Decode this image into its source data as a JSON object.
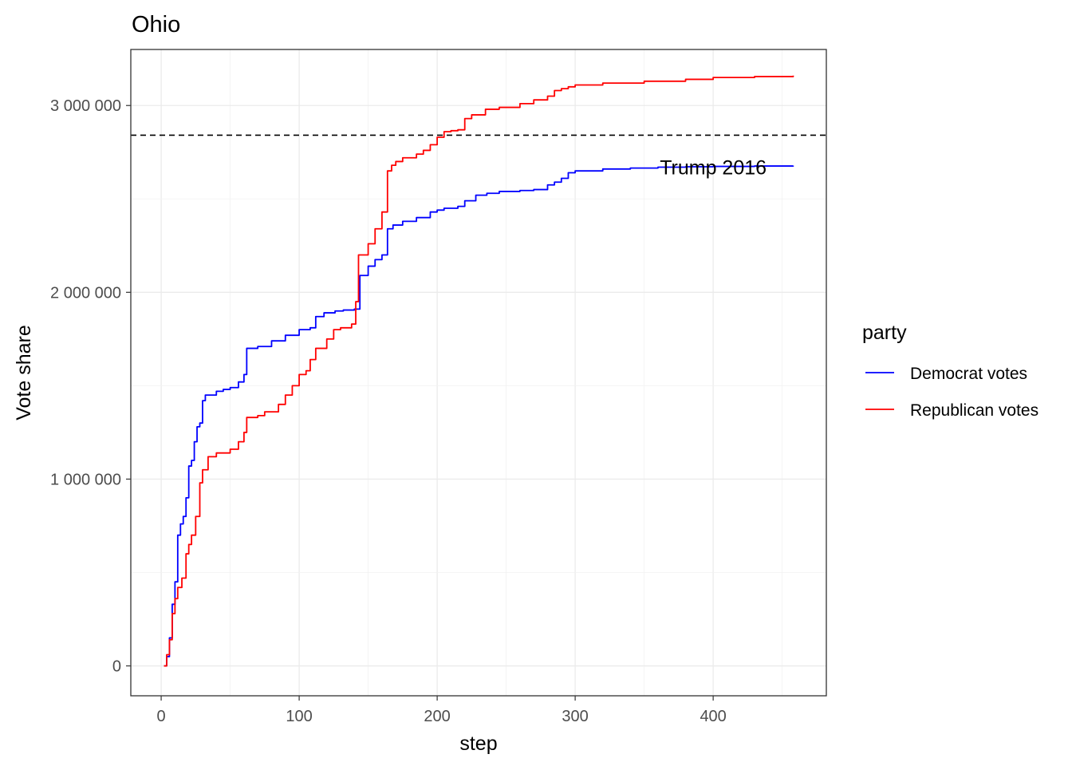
{
  "chart_data": {
    "type": "line",
    "title": "Ohio",
    "xlabel": "step",
    "ylabel": "Vote share",
    "xlim": [
      -22,
      482
    ],
    "ylim": [
      -160000,
      3300000
    ],
    "x_ticks": [
      0,
      100,
      200,
      300,
      400
    ],
    "x_tick_labels": [
      "0",
      "100",
      "200",
      "300",
      "400"
    ],
    "y_ticks": [
      0,
      1000000,
      2000000,
      3000000
    ],
    "y_tick_labels": [
      "0",
      "1 000 000",
      "2 000 000",
      "3 000 000"
    ],
    "grid": true,
    "legend": {
      "title": "party",
      "position": "right",
      "entries": [
        {
          "label": "Democrat votes",
          "color": "#0000ff"
        },
        {
          "label": "Republican votes",
          "color": "#ff0000"
        }
      ]
    },
    "reference_line": {
      "y": 2841005,
      "style": "dashed",
      "color": "#000000"
    },
    "annotation": {
      "text": "Trump 2016",
      "x": 400,
      "y": 2670000
    },
    "series": [
      {
        "name": "Democrat votes",
        "color": "#0000ff",
        "x": [
          2,
          4,
          6,
          8,
          10,
          12,
          14,
          16,
          18,
          20,
          22,
          24,
          26,
          28,
          30,
          32,
          35,
          40,
          45,
          50,
          56,
          60,
          62,
          70,
          80,
          90,
          100,
          108,
          112,
          118,
          126,
          132,
          140,
          144,
          150,
          155,
          160,
          164,
          168,
          175,
          185,
          195,
          200,
          205,
          215,
          220,
          228,
          236,
          245,
          260,
          270,
          280,
          285,
          290,
          295,
          300,
          320,
          340,
          360,
          380,
          400,
          430,
          458
        ],
        "values": [
          0,
          50000,
          150000,
          330000,
          450000,
          700000,
          760000,
          800000,
          900000,
          1070000,
          1100000,
          1200000,
          1280000,
          1300000,
          1420000,
          1450000,
          1450000,
          1470000,
          1480000,
          1490000,
          1520000,
          1560000,
          1700000,
          1710000,
          1740000,
          1770000,
          1800000,
          1810000,
          1870000,
          1890000,
          1900000,
          1905000,
          1910000,
          2090000,
          2140000,
          2175000,
          2200000,
          2340000,
          2360000,
          2380000,
          2400000,
          2430000,
          2440000,
          2450000,
          2460000,
          2490000,
          2520000,
          2530000,
          2540000,
          2545000,
          2550000,
          2575000,
          2590000,
          2610000,
          2640000,
          2650000,
          2660000,
          2665000,
          2670000,
          2672000,
          2674000,
          2676000,
          2678000
        ]
      },
      {
        "name": "Republican votes",
        "color": "#ff0000",
        "x": [
          2,
          4,
          6,
          8,
          10,
          12,
          15,
          18,
          20,
          22,
          25,
          28,
          30,
          34,
          40,
          50,
          56,
          60,
          62,
          70,
          75,
          85,
          90,
          95,
          100,
          105,
          108,
          112,
          120,
          125,
          130,
          138,
          141,
          143,
          150,
          155,
          160,
          164,
          167,
          170,
          175,
          185,
          190,
          195,
          200,
          205,
          210,
          215,
          220,
          225,
          235,
          245,
          260,
          270,
          280,
          285,
          290,
          295,
          300,
          320,
          350,
          380,
          400,
          430,
          458
        ],
        "values": [
          0,
          60000,
          140000,
          280000,
          360000,
          420000,
          470000,
          600000,
          650000,
          700000,
          800000,
          980000,
          1050000,
          1120000,
          1140000,
          1160000,
          1200000,
          1250000,
          1330000,
          1340000,
          1360000,
          1400000,
          1450000,
          1500000,
          1560000,
          1580000,
          1640000,
          1700000,
          1750000,
          1800000,
          1810000,
          1830000,
          1950000,
          2200000,
          2260000,
          2340000,
          2430000,
          2650000,
          2680000,
          2700000,
          2720000,
          2740000,
          2760000,
          2790000,
          2830000,
          2860000,
          2865000,
          2870000,
          2930000,
          2950000,
          2980000,
          2990000,
          3010000,
          3030000,
          3050000,
          3080000,
          3090000,
          3100000,
          3110000,
          3120000,
          3130000,
          3140000,
          3150000,
          3155000,
          3160000
        ]
      }
    ]
  }
}
